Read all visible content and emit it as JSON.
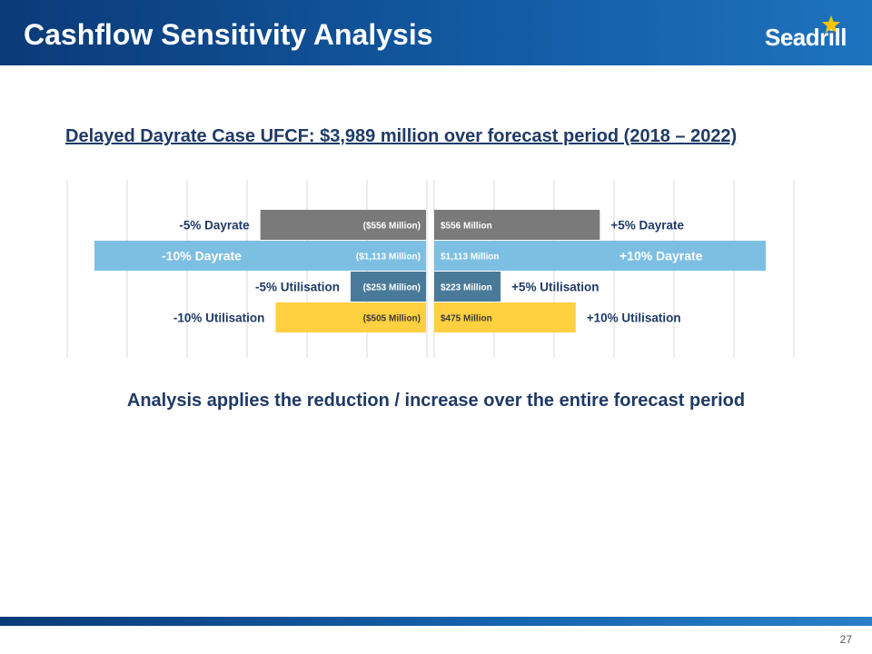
{
  "header": {
    "title": "Cashflow Sensitivity Analysis",
    "logo_text": "Seadrill",
    "color": "#125aa2"
  },
  "subtitle": "Delayed Dayrate Case UFCF: $3,989 million over forecast period (2018 – 2022)",
  "chart_data": {
    "type": "bar",
    "orientation": "horizontal",
    "subtype": "tornado",
    "units": "$ Million",
    "xlim": [
      -1150,
      1150
    ],
    "grid": true,
    "rows": [
      {
        "name": "dayrate-5",
        "color": "#7a7a7a",
        "negative": {
          "value": -556,
          "label": "($556 Million)",
          "category": "-5% Dayrate"
        },
        "positive": {
          "value": 556,
          "label": "$556 Million",
          "category": "+5% Dayrate"
        }
      },
      {
        "name": "dayrate-10",
        "color": "#7dbfe3",
        "negative": {
          "value": -1113,
          "label": "($1,113 Million)",
          "category": "-10% Dayrate"
        },
        "positive": {
          "value": 1113,
          "label": "$1,113 Million",
          "category": "+10% Dayrate"
        }
      },
      {
        "name": "utilisation-5",
        "color": "#4a7a99",
        "negative": {
          "value": -253,
          "label": "($253 Million)",
          "category": "-5% Utilisation"
        },
        "positive": {
          "value": 223,
          "label": "$223 Million",
          "category": "+5% Utilisation"
        }
      },
      {
        "name": "utilisation-10",
        "color": "#ffd040",
        "negative": {
          "value": -505,
          "label": "($505 Million)",
          "category": "-10% Utilisation"
        },
        "positive": {
          "value": 475,
          "label": "$475 Million",
          "category": "+10% Utilisation"
        }
      }
    ]
  },
  "note": "Analysis applies the reduction / increase over the entire forecast period",
  "footer": {
    "page_number": "27"
  }
}
